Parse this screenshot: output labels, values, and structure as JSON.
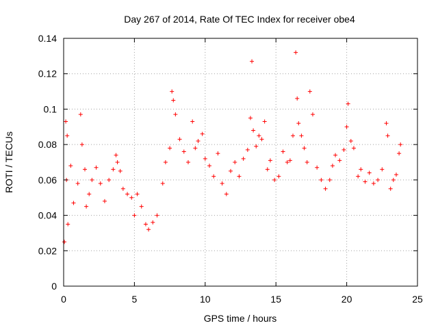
{
  "chart_data": {
    "type": "scatter",
    "title": "Day 267 of 2014, Rate Of TEC Index for receiver obe4",
    "xlabel": "GPS time / hours",
    "ylabel": "ROTI / TECUs",
    "xlim": [
      0,
      25
    ],
    "ylim": [
      0,
      0.14
    ],
    "x_ticks": [
      0,
      5,
      10,
      15,
      20,
      25
    ],
    "x_tick_labels": [
      "0",
      "5",
      "10",
      "15",
      "20",
      "25"
    ],
    "y_ticks": [
      0,
      0.02,
      0.04,
      0.06,
      0.08,
      0.1,
      0.12,
      0.14
    ],
    "y_tick_labels": [
      "0",
      "0.02",
      "0.04",
      "0.06",
      "0.08",
      "0.1",
      "0.12",
      "0.14"
    ],
    "grid": true,
    "marker": "+",
    "color": "#ff0000",
    "series": [
      {
        "x": [
          0.05,
          0.15,
          0.2,
          0.25,
          0.3,
          0.5,
          0.7,
          1.0,
          1.2,
          1.3,
          1.5,
          1.6,
          1.8,
          2.0,
          2.3,
          2.6,
          2.9,
          3.2,
          3.5,
          3.7,
          3.8,
          4.0,
          4.2,
          4.5,
          4.8,
          5.0,
          5.2,
          5.5,
          5.8,
          6.0,
          6.3,
          6.6,
          7.0,
          7.2,
          7.5,
          7.65,
          7.75,
          7.9,
          8.2,
          8.5,
          8.8,
          9.1,
          9.3,
          9.5,
          9.8,
          10.0,
          10.3,
          10.6,
          10.9,
          11.2,
          11.5,
          11.8,
          12.1,
          12.4,
          12.7,
          13.0,
          13.2,
          13.3,
          13.4,
          13.6,
          13.8,
          14.0,
          14.2,
          14.4,
          14.6,
          14.9,
          15.2,
          15.5,
          15.8,
          16.0,
          16.2,
          16.4,
          16.5,
          16.6,
          16.8,
          17.0,
          17.2,
          17.4,
          17.6,
          17.9,
          18.2,
          18.5,
          18.8,
          19.0,
          19.2,
          19.5,
          19.8,
          20.0,
          20.1,
          20.3,
          20.5,
          20.8,
          21.0,
          21.3,
          21.6,
          21.9,
          22.2,
          22.5,
          22.8,
          22.9,
          23.1,
          23.3,
          23.5,
          23.7,
          23.8
        ],
        "y": [
          0.025,
          0.093,
          0.06,
          0.085,
          0.035,
          0.068,
          0.047,
          0.058,
          0.097,
          0.08,
          0.066,
          0.045,
          0.052,
          0.06,
          0.067,
          0.058,
          0.048,
          0.06,
          0.066,
          0.074,
          0.07,
          0.065,
          0.055,
          0.052,
          0.05,
          0.04,
          0.052,
          0.045,
          0.035,
          0.032,
          0.036,
          0.04,
          0.058,
          0.07,
          0.078,
          0.11,
          0.105,
          0.097,
          0.083,
          0.076,
          0.07,
          0.093,
          0.078,
          0.082,
          0.086,
          0.072,
          0.068,
          0.062,
          0.075,
          0.058,
          0.052,
          0.065,
          0.07,
          0.062,
          0.072,
          0.077,
          0.095,
          0.127,
          0.088,
          0.079,
          0.085,
          0.083,
          0.093,
          0.066,
          0.071,
          0.06,
          0.062,
          0.076,
          0.07,
          0.071,
          0.085,
          0.132,
          0.106,
          0.092,
          0.085,
          0.078,
          0.07,
          0.11,
          0.097,
          0.067,
          0.06,
          0.055,
          0.06,
          0.068,
          0.074,
          0.071,
          0.077,
          0.09,
          0.103,
          0.082,
          0.078,
          0.062,
          0.066,
          0.059,
          0.064,
          0.058,
          0.06,
          0.066,
          0.092,
          0.085,
          0.055,
          0.06,
          0.063,
          0.075,
          0.08
        ]
      }
    ]
  }
}
